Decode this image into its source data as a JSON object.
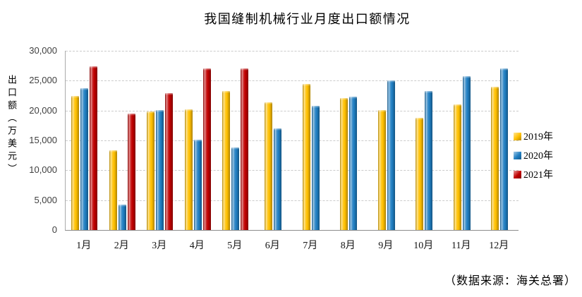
{
  "chart_data": {
    "type": "bar",
    "title": "我国缝制机械行业月度出口额情况",
    "ylabel": "出口额（万美元）",
    "source_note": "（数据来源：海关总署）",
    "categories": [
      "1月",
      "2月",
      "3月",
      "4月",
      "5月",
      "6月",
      "7月",
      "8月",
      "9月",
      "10月",
      "11月",
      "12月"
    ],
    "series": [
      {
        "name": "2019年",
        "color": "#FFC000",
        "values": [
          22400,
          13400,
          19800,
          20200,
          23300,
          21400,
          24400,
          22100,
          20100,
          18800,
          21000,
          24000
        ]
      },
      {
        "name": "2020年",
        "color": "#1F7EC2",
        "values": [
          23800,
          4200,
          20100,
          15100,
          13800,
          17000,
          20800,
          22300,
          25100,
          23300,
          25800,
          27000
        ]
      },
      {
        "name": "2021年",
        "color": "#C00000",
        "values": [
          27400,
          19500,
          22900,
          27000,
          27000,
          null,
          null,
          null,
          null,
          null,
          null,
          null
        ]
      }
    ],
    "ylim": [
      0,
      30000
    ],
    "yticks": [
      0,
      5000,
      10000,
      15000,
      20000,
      25000,
      30000
    ],
    "grid": "horizontal-dashed",
    "legend_position": "right"
  }
}
